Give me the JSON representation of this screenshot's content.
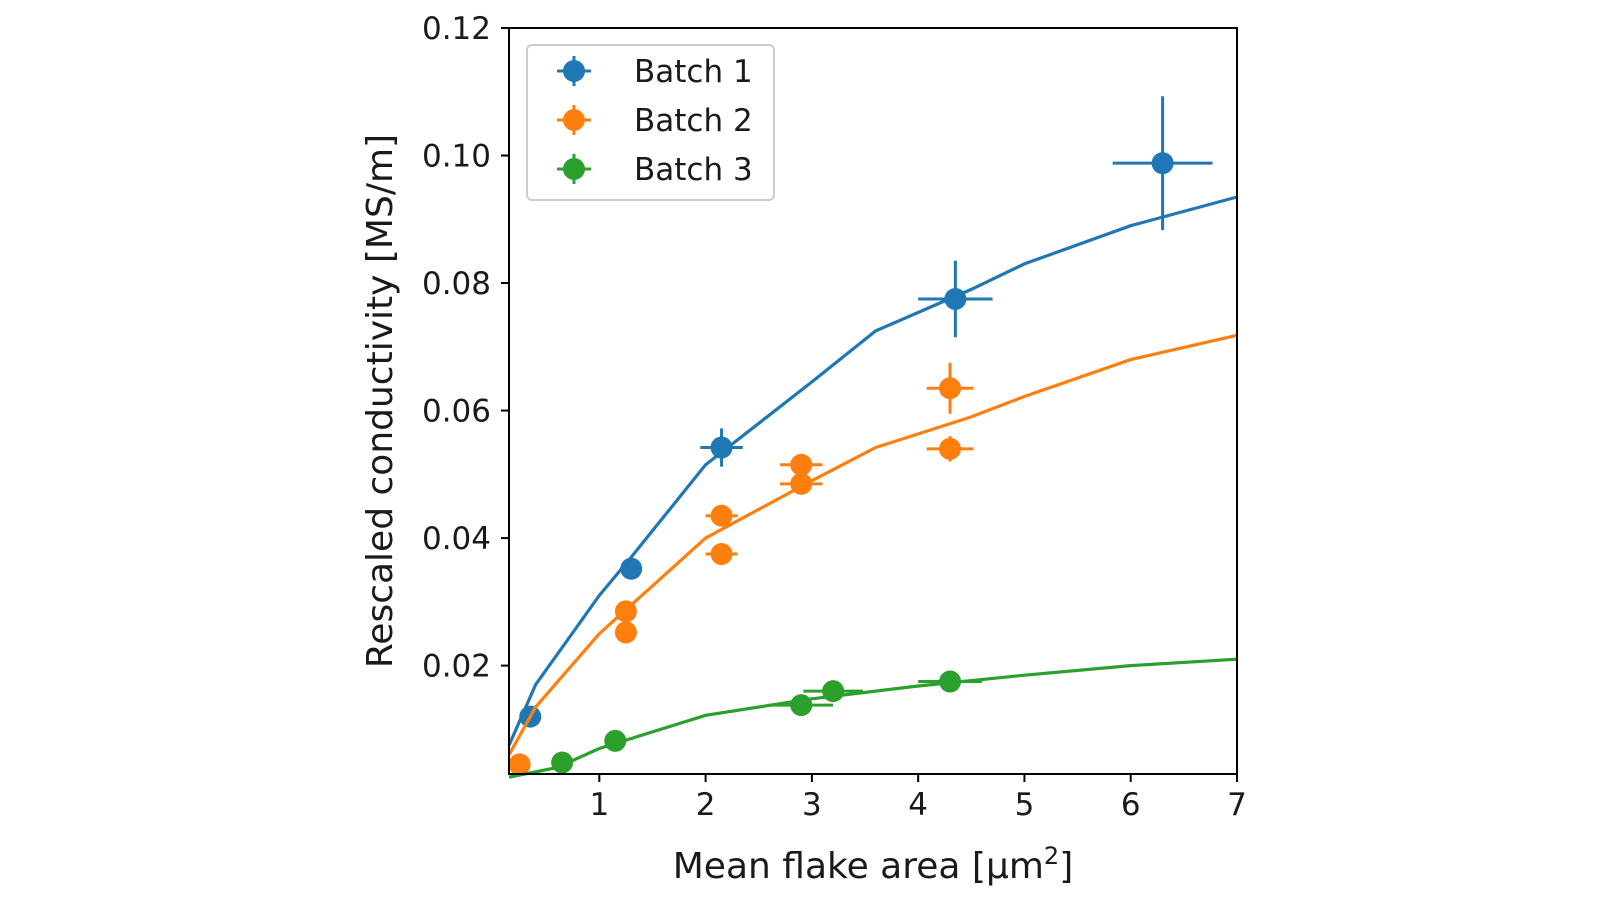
{
  "chart_data": {
    "type": "scatter",
    "xlabel": "Mean flake area [μm",
    "xlabel_sup": "2",
    "xlabel_close": "]",
    "ylabel": "Rescaled conductivity [MS/m]",
    "xlim": [
      0.15,
      7.0
    ],
    "ylim": [
      0.003,
      0.12
    ],
    "x_ticks": [
      1,
      2,
      3,
      4,
      5,
      6,
      7
    ],
    "x_tick_labels": [
      "1",
      "2",
      "3",
      "4",
      "5",
      "6",
      "7"
    ],
    "y_ticks": [
      0.02,
      0.04,
      0.06,
      0.08,
      0.1,
      0.12
    ],
    "y_tick_labels": [
      "0.02",
      "0.04",
      "0.06",
      "0.08",
      "0.10",
      "0.12"
    ],
    "grid": false,
    "legend_position": "top-left",
    "series": [
      {
        "name": "Batch 1",
        "color": "#1f77b4",
        "points": [
          {
            "x": 0.35,
            "y": 0.012,
            "xerr": 0,
            "yerr": 0
          },
          {
            "x": 1.3,
            "y": 0.0352,
            "xerr": 0,
            "yerr": 0
          },
          {
            "x": 2.15,
            "y": 0.0542,
            "xerr": 0.2,
            "yerr": 0.003
          },
          {
            "x": 4.35,
            "y": 0.0775,
            "xerr": 0.35,
            "yerr": 0.006
          },
          {
            "x": 6.3,
            "y": 0.0988,
            "xerr": 0.47,
            "yerr": 0.0105
          }
        ],
        "fit": {
          "x": [
            0.15,
            0.4,
            1.0,
            1.3,
            2.0,
            3.0,
            3.6,
            4.5,
            5.0,
            6.0,
            7.0
          ],
          "y": [
            0.0075,
            0.017,
            0.031,
            0.037,
            0.0515,
            0.0645,
            0.0725,
            0.079,
            0.083,
            0.089,
            0.0935
          ]
        }
      },
      {
        "name": "Batch 2",
        "color": "#ff7f0e",
        "points": [
          {
            "x": 0.25,
            "y": 0.0045,
            "xerr": 0,
            "yerr": 0
          },
          {
            "x": 1.25,
            "y": 0.0252,
            "xerr": 0,
            "yerr": 0
          },
          {
            "x": 1.25,
            "y": 0.0285,
            "xerr": 0,
            "yerr": 0
          },
          {
            "x": 2.15,
            "y": 0.0375,
            "xerr": 0.15,
            "yerr": 0
          },
          {
            "x": 2.15,
            "y": 0.0435,
            "xerr": 0.15,
            "yerr": 0.0015
          },
          {
            "x": 2.9,
            "y": 0.0485,
            "xerr": 0.2,
            "yerr": 0.001
          },
          {
            "x": 2.9,
            "y": 0.0515,
            "xerr": 0.2,
            "yerr": 0.0015
          },
          {
            "x": 4.3,
            "y": 0.054,
            "xerr": 0.22,
            "yerr": 0.002
          },
          {
            "x": 4.3,
            "y": 0.0635,
            "xerr": 0.22,
            "yerr": 0.004
          }
        ],
        "fit": {
          "x": [
            0.15,
            0.4,
            1.0,
            2.0,
            3.0,
            3.6,
            4.5,
            5.0,
            6.0,
            7.0
          ],
          "y": [
            0.006,
            0.0135,
            0.025,
            0.04,
            0.049,
            0.0542,
            0.059,
            0.0622,
            0.068,
            0.0718
          ]
        }
      },
      {
        "name": "Batch 3",
        "color": "#2ca02c",
        "points": [
          {
            "x": 0.65,
            "y": 0.0048,
            "xerr": 0,
            "yerr": 0
          },
          {
            "x": 1.15,
            "y": 0.0082,
            "xerr": 0,
            "yerr": 0
          },
          {
            "x": 2.9,
            "y": 0.0138,
            "xerr": 0.3,
            "yerr": 0
          },
          {
            "x": 3.2,
            "y": 0.016,
            "xerr": 0.28,
            "yerr": 0
          },
          {
            "x": 4.3,
            "y": 0.0175,
            "xerr": 0.3,
            "yerr": 0
          }
        ],
        "fit": {
          "x": [
            0.15,
            0.6,
            1.0,
            2.0,
            3.0,
            4.0,
            5.0,
            6.0,
            7.0
          ],
          "y": [
            0.0025,
            0.004,
            0.007,
            0.0122,
            0.0148,
            0.0168,
            0.0185,
            0.02,
            0.021
          ]
        }
      }
    ]
  }
}
